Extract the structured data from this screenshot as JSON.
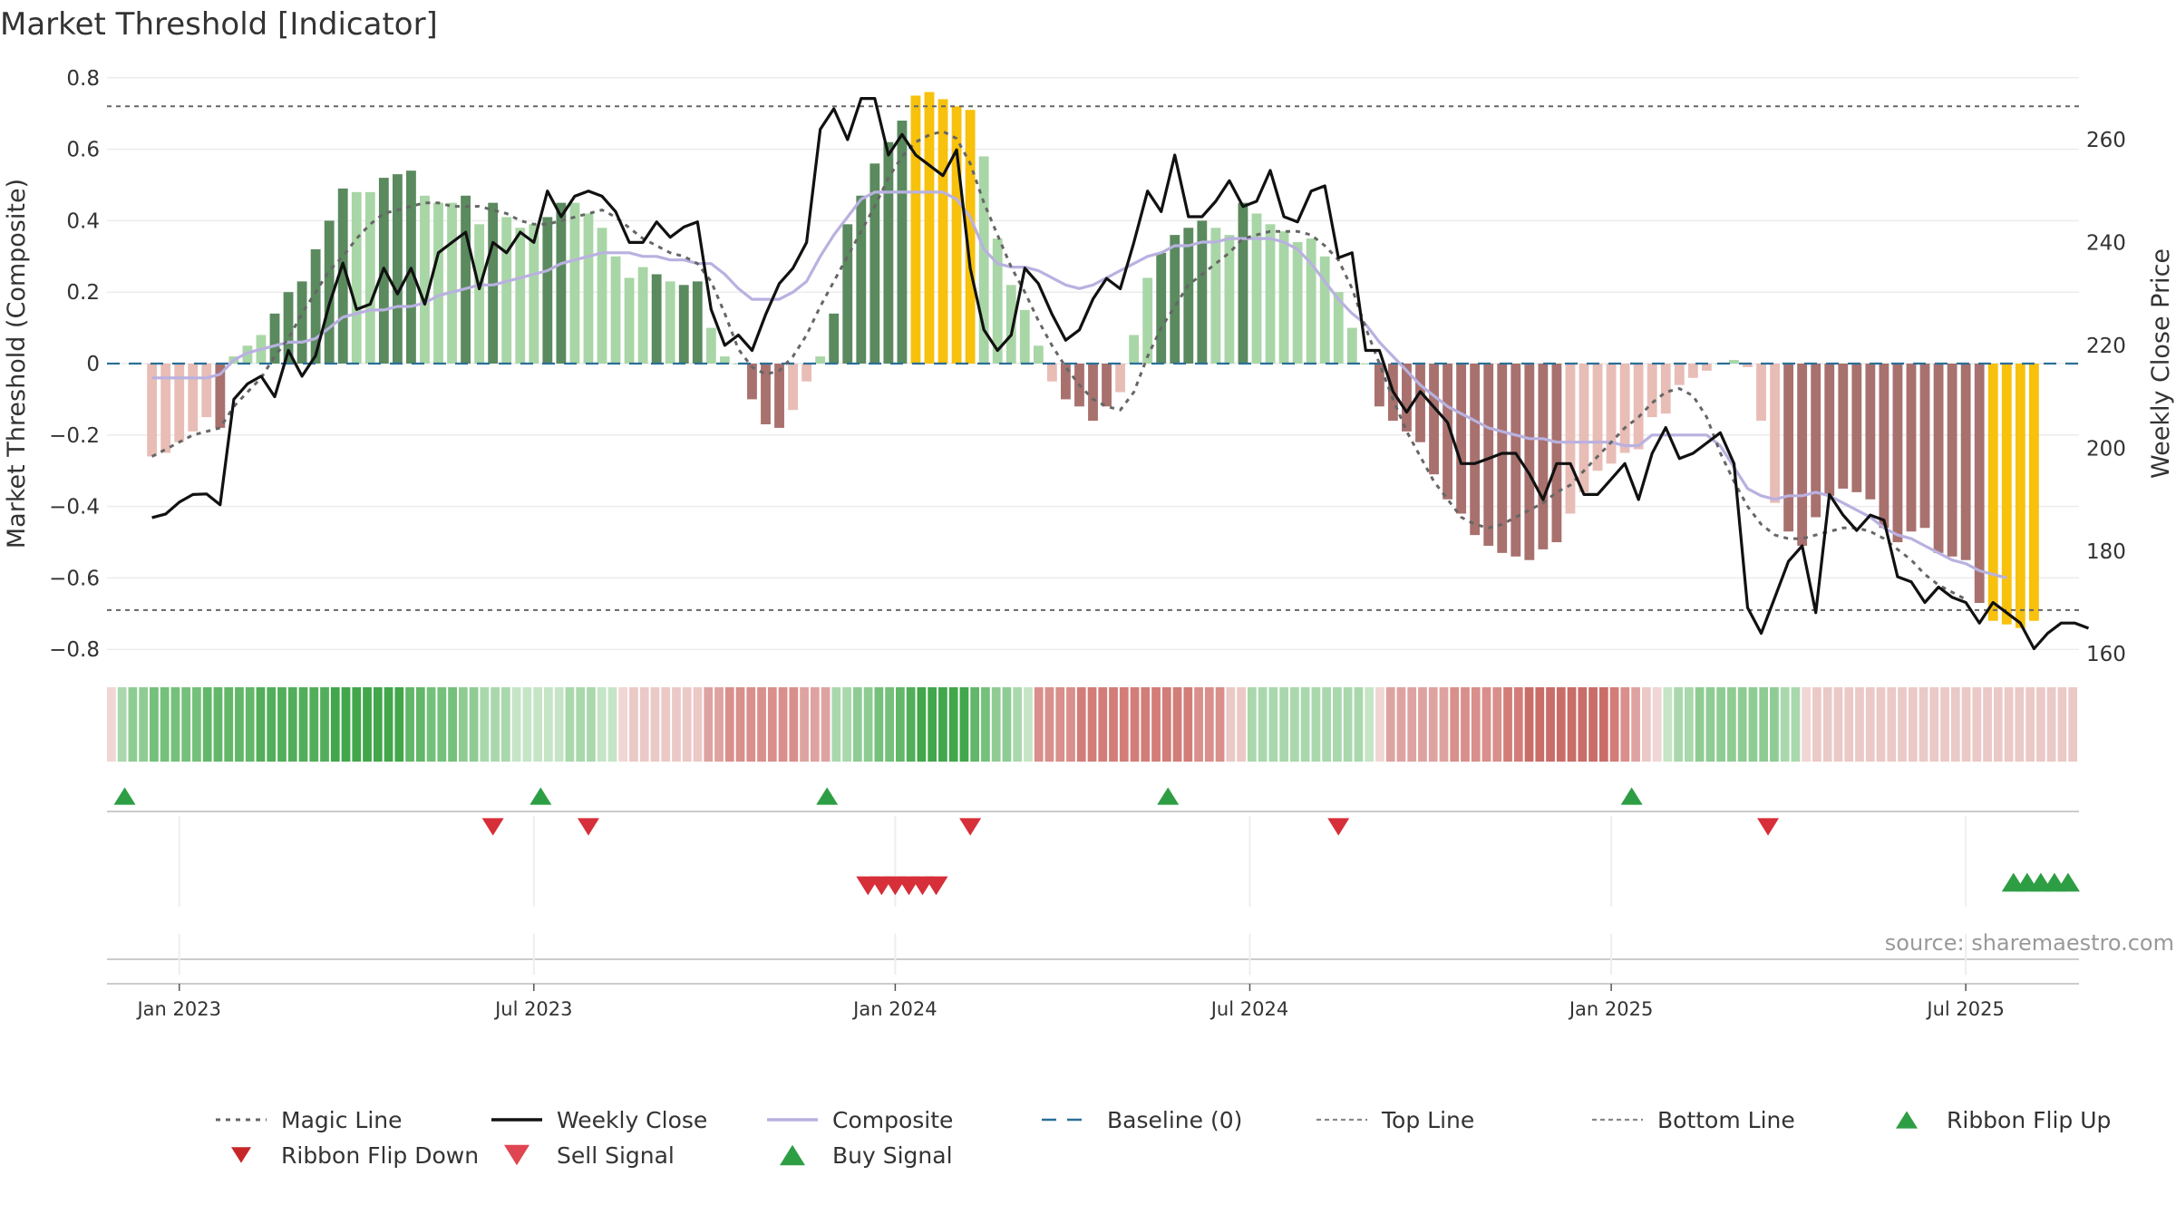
{
  "title": "Market Threshold [Indicator]",
  "source": "source: sharemaestro.com",
  "colors": {
    "dark_green": "#5a8a5e",
    "light_green": "#a9d6a6",
    "dark_red": "#a8716e",
    "light_red": "#e8bdb6",
    "gold": "#f7c10c",
    "weekly_close": "#111111",
    "composite": "#b9b1e0",
    "magic": "#666666",
    "baseline": "#2a6f97",
    "signal_green": "#2e9e44",
    "signal_red": "#d62f3a"
  },
  "chart_data": {
    "type": "bar+line",
    "title": "Market Threshold [Indicator]",
    "ylabel": "Market Threshold (Composite)",
    "y2label": "Weekly Close Price",
    "ylim": [
      -0.84,
      0.84
    ],
    "y2lim": [
      158.1,
      274.8
    ],
    "yticks": [
      0.8,
      0.6,
      0.4,
      0.2,
      0,
      -0.2,
      -0.4,
      -0.6,
      -0.8
    ],
    "yticklabels": [
      "0.8",
      "0.6",
      "0.4",
      "0.2",
      "0",
      "−0.2",
      "−0.4",
      "−0.6",
      "−0.8"
    ],
    "y2ticks": [
      260,
      240,
      220,
      200,
      180,
      160
    ],
    "y2ticklabels": [
      "260",
      "240",
      "220",
      "200",
      "180",
      "160"
    ],
    "xlim_weeks": [
      -3.3,
      141.3
    ],
    "xticks": [
      {
        "week": 2,
        "label": "Jan 2023"
      },
      {
        "week": 28,
        "label": "Jul 2023"
      },
      {
        "week": 54.5,
        "label": "Jan 2024"
      },
      {
        "week": 80.5,
        "label": "Jul 2024"
      },
      {
        "week": 107,
        "label": "Jan 2025"
      },
      {
        "week": 133,
        "label": "Jul 2025"
      }
    ],
    "top_line": 0.72,
    "bottom_line": -0.69,
    "bars": {
      "values": [
        -0.26,
        -0.25,
        -0.22,
        -0.19,
        -0.15,
        -0.18,
        0.02,
        0.05,
        0.08,
        0.14,
        0.2,
        0.23,
        0.32,
        0.4,
        0.49,
        0.48,
        0.48,
        0.52,
        0.53,
        0.54,
        0.47,
        0.45,
        0.45,
        0.47,
        0.39,
        0.45,
        0.41,
        0.38,
        0.39,
        0.41,
        0.45,
        0.45,
        0.42,
        0.38,
        0.3,
        0.24,
        0.27,
        0.25,
        0.23,
        0.22,
        0.23,
        0.1,
        0.02,
        0.0,
        -0.1,
        -0.17,
        -0.18,
        -0.13,
        -0.05,
        0.02,
        0.14,
        0.39,
        0.47,
        0.56,
        0.62,
        0.68,
        0.75,
        0.76,
        0.74,
        0.72,
        0.71,
        0.58,
        0.35,
        0.22,
        0.15,
        0.05,
        -0.05,
        -0.1,
        -0.12,
        -0.16,
        -0.12,
        -0.08,
        0.08,
        0.24,
        0.31,
        0.36,
        0.38,
        0.4,
        0.38,
        0.36,
        0.45,
        0.42,
        0.39,
        0.37,
        0.34,
        0.35,
        0.3,
        0.2,
        0.1,
        0.0,
        -0.12,
        -0.16,
        -0.19,
        -0.22,
        -0.31,
        -0.38,
        -0.42,
        -0.48,
        -0.51,
        -0.53,
        -0.54,
        -0.55,
        -0.52,
        -0.5,
        -0.42,
        -0.36,
        -0.3,
        -0.28,
        -0.25,
        -0.24,
        -0.15,
        -0.14,
        -0.06,
        -0.04,
        -0.02,
        0.0,
        0.01,
        -0.01,
        -0.16,
        -0.39,
        -0.47,
        -0.51,
        -0.43,
        -0.37,
        -0.35,
        -0.36,
        -0.38,
        -0.46,
        -0.5,
        -0.47,
        -0.46,
        -0.53,
        -0.54,
        -0.55,
        -0.67,
        -0.72,
        -0.73,
        -0.74,
        -0.72
      ],
      "shades": [
        "L",
        "L",
        "L",
        "L",
        "L",
        "D",
        "L",
        "L",
        "L",
        "D",
        "D",
        "D",
        "D",
        "D",
        "D",
        "L",
        "L",
        "D",
        "D",
        "D",
        "L",
        "L",
        "L",
        "D",
        "L",
        "D",
        "L",
        "L",
        "L",
        "D",
        "D",
        "L",
        "L",
        "L",
        "L",
        "L",
        "L",
        "D",
        "L",
        "D",
        "D",
        "L",
        "L",
        "L",
        "D",
        "D",
        "D",
        "L",
        "L",
        "L",
        "D",
        "D",
        "D",
        "D",
        "D",
        "D",
        "G",
        "G",
        "G",
        "G",
        "G",
        "L",
        "L",
        "L",
        "L",
        "L",
        "L",
        "D",
        "D",
        "D",
        "D",
        "L",
        "L",
        "L",
        "D",
        "D",
        "D",
        "D",
        "L",
        "L",
        "D",
        "L",
        "L",
        "L",
        "L",
        "L",
        "L",
        "L",
        "L",
        "L",
        "D",
        "D",
        "D",
        "D",
        "D",
        "D",
        "D",
        "D",
        "D",
        "D",
        "D",
        "D",
        "D",
        "D",
        "L",
        "L",
        "L",
        "L",
        "L",
        "L",
        "L",
        "L",
        "L",
        "L",
        "L",
        "L",
        "L",
        "L",
        "L",
        "L",
        "D",
        "D",
        "D",
        "D",
        "D",
        "D",
        "D",
        "D",
        "D",
        "D",
        "D",
        "D",
        "D",
        "D",
        "D",
        "G",
        "G",
        "G",
        "G",
        "G"
      ]
    },
    "series": [
      {
        "name": "Weekly Close",
        "axis": "right",
        "values": [
          186.5,
          187.2,
          189.5,
          191.0,
          191.1,
          189.0,
          209.5,
          212.5,
          214.0,
          210.0,
          219.0,
          214.0,
          218.0,
          228.0,
          236.0,
          227.0,
          228.0,
          235.0,
          230.0,
          235.0,
          228.0,
          238.0,
          240.0,
          242.0,
          231.0,
          240.0,
          238.0,
          242.0,
          240.0,
          250.0,
          245.0,
          249.0,
          250.0,
          249.0,
          246.0,
          240.0,
          240.0,
          244.0,
          241.0,
          243.0,
          244.0,
          227.0,
          220.0,
          222.0,
          219.0,
          226.0,
          232.0,
          235.0,
          240.0,
          262.0,
          266.0,
          260.0,
          268.0,
          268.0,
          257.0,
          261.0,
          257.0,
          255.0,
          253.0,
          258.0,
          235.0,
          223.0,
          219.0,
          222.0,
          235.0,
          232.0,
          226.0,
          221.0,
          223.0,
          229.0,
          233.0,
          231.0,
          240.0,
          250.0,
          246.0,
          257.0,
          245.0,
          245.0,
          248.0,
          252.0,
          247.0,
          248.0,
          254.0,
          245.0,
          244.0,
          250.0,
          251.0,
          237.0,
          238.0,
          219.0,
          219.0,
          211.0,
          207.0,
          211.0,
          208.0,
          205.0,
          197.0,
          197.0,
          198.0,
          199.0,
          199.0,
          195.0,
          190.0,
          197.0,
          197.0,
          191.0,
          191.0,
          194.0,
          197.0,
          190.0,
          199.0,
          204.0,
          198.0,
          199.0,
          201.0,
          203.0,
          197.0,
          169.0,
          164.0,
          171.0,
          178.0,
          181.0,
          168.0,
          191.0,
          187.0,
          184.0,
          187.0,
          186.0,
          175.0,
          174.0,
          170.0,
          173.0,
          171.0,
          170.0,
          166.0,
          170.0,
          168.0,
          166.0,
          161.0,
          164.0,
          166.0,
          166.0,
          165.0
        ]
      },
      {
        "name": "Composite",
        "axis": "left",
        "values": [
          -0.04,
          -0.04,
          -0.04,
          -0.04,
          -0.04,
          -0.03,
          0.01,
          0.03,
          0.04,
          0.05,
          0.06,
          0.06,
          0.07,
          0.1,
          0.13,
          0.14,
          0.15,
          0.15,
          0.16,
          0.16,
          0.17,
          0.19,
          0.2,
          0.21,
          0.22,
          0.22,
          0.23,
          0.24,
          0.25,
          0.26,
          0.28,
          0.29,
          0.3,
          0.31,
          0.31,
          0.31,
          0.3,
          0.3,
          0.29,
          0.29,
          0.28,
          0.28,
          0.25,
          0.21,
          0.18,
          0.18,
          0.18,
          0.2,
          0.23,
          0.3,
          0.36,
          0.41,
          0.46,
          0.48,
          0.48,
          0.48,
          0.48,
          0.48,
          0.48,
          0.46,
          0.41,
          0.32,
          0.28,
          0.27,
          0.27,
          0.26,
          0.24,
          0.22,
          0.21,
          0.22,
          0.24,
          0.26,
          0.28,
          0.3,
          0.31,
          0.33,
          0.33,
          0.34,
          0.34,
          0.35,
          0.35,
          0.35,
          0.35,
          0.34,
          0.32,
          0.28,
          0.23,
          0.18,
          0.14,
          0.11,
          0.06,
          0.02,
          -0.02,
          -0.06,
          -0.09,
          -0.12,
          -0.14,
          -0.16,
          -0.18,
          -0.19,
          -0.2,
          -0.21,
          -0.21,
          -0.22,
          -0.22,
          -0.22,
          -0.22,
          -0.22,
          -0.23,
          -0.23,
          -0.2,
          -0.2,
          -0.2,
          -0.2,
          -0.2,
          -0.23,
          -0.29,
          -0.35,
          -0.37,
          -0.38,
          -0.37,
          -0.37,
          -0.36,
          -0.37,
          -0.39,
          -0.41,
          -0.43,
          -0.46,
          -0.48,
          -0.49,
          -0.51,
          -0.53,
          -0.55,
          -0.56,
          -0.58,
          -0.59,
          -0.6
        ]
      },
      {
        "name": "Magic Line",
        "axis": "left",
        "values": [
          -0.26,
          -0.24,
          -0.22,
          -0.2,
          -0.19,
          -0.18,
          -0.12,
          -0.08,
          -0.04,
          0.02,
          0.07,
          0.14,
          0.2,
          0.26,
          0.3,
          0.35,
          0.39,
          0.42,
          0.43,
          0.44,
          0.45,
          0.45,
          0.44,
          0.44,
          0.44,
          0.43,
          0.42,
          0.4,
          0.39,
          0.39,
          0.4,
          0.41,
          0.42,
          0.43,
          0.41,
          0.38,
          0.35,
          0.33,
          0.31,
          0.3,
          0.28,
          0.23,
          0.14,
          0.04,
          -0.01,
          -0.03,
          -0.02,
          0.02,
          0.08,
          0.16,
          0.23,
          0.3,
          0.37,
          0.44,
          0.52,
          0.58,
          0.62,
          0.64,
          0.65,
          0.63,
          0.56,
          0.45,
          0.36,
          0.27,
          0.2,
          0.12,
          0.05,
          -0.01,
          -0.06,
          -0.1,
          -0.12,
          -0.13,
          -0.08,
          0.02,
          0.1,
          0.16,
          0.22,
          0.25,
          0.28,
          0.31,
          0.35,
          0.36,
          0.37,
          0.37,
          0.37,
          0.36,
          0.33,
          0.29,
          0.21,
          0.1,
          0.0,
          -0.1,
          -0.19,
          -0.26,
          -0.33,
          -0.38,
          -0.43,
          -0.45,
          -0.46,
          -0.45,
          -0.43,
          -0.41,
          -0.39,
          -0.36,
          -0.34,
          -0.3,
          -0.26,
          -0.22,
          -0.18,
          -0.15,
          -0.11,
          -0.08,
          -0.07,
          -0.09,
          -0.15,
          -0.25,
          -0.33,
          -0.4,
          -0.45,
          -0.48,
          -0.49,
          -0.49,
          -0.48,
          -0.47,
          -0.46,
          -0.46,
          -0.47,
          -0.49,
          -0.52,
          -0.55,
          -0.59,
          -0.62,
          -0.64,
          -0.66
        ]
      }
    ],
    "ribbon": {
      "colors": [
        "#f0d6d4",
        "#a9d8ac",
        "#8fcc93",
        "#8fcc93",
        "#75c07b",
        "#75c07b",
        "#75c07b",
        "#75c07b",
        "#75c07b",
        "#62b769",
        "#62b769",
        "#62b769",
        "#62b769",
        "#62b769",
        "#52ae5a",
        "#52ae5a",
        "#52ae5a",
        "#52ae5a",
        "#52ae5a",
        "#52ae5a",
        "#52ae5a",
        "#42a64b",
        "#42a64b",
        "#42a64b",
        "#42a64b",
        "#42a64b",
        "#42a64b",
        "#42a64b",
        "#62b769",
        "#62b769",
        "#75c07b",
        "#75c07b",
        "#75c07b",
        "#8fcc93",
        "#8fcc93",
        "#a9d8ac",
        "#a9d8ac",
        "#a9d8ac",
        "#c5e5c6",
        "#c5e5c6",
        "#c5e5c6",
        "#c5e5c6",
        "#c5e5c6",
        "#a9d8ac",
        "#a9d8ac",
        "#a9d8ac",
        "#c5e5c6",
        "#c5e5c6",
        "#f0d6d4",
        "#ebc9c6",
        "#ebc9c6",
        "#ebc9c6",
        "#ebc9c6",
        "#ebc9c6",
        "#ebc9c6",
        "#ebc9c6",
        "#dea3a0",
        "#dea3a0",
        "#d98f8b",
        "#d98f8b",
        "#d98f8b",
        "#d98f8b",
        "#d98f8b",
        "#d98f8b",
        "#d98f8b",
        "#dea3a0",
        "#dea3a0",
        "#dea3a0",
        "#a9d8ac",
        "#a9d8ac",
        "#8fcc93",
        "#8fcc93",
        "#75c07b",
        "#75c07b",
        "#62b769",
        "#52ae5a",
        "#42a64b",
        "#42a64b",
        "#42a64b",
        "#42a64b",
        "#42a64b",
        "#62b769",
        "#75c07b",
        "#8fcc93",
        "#8fcc93",
        "#a9d8ac",
        "#c5e5c6",
        "#d98f8b",
        "#d98f8b",
        "#d98f8b",
        "#d98f8b",
        "#d27d78",
        "#d27d78",
        "#d27d78",
        "#d27d78",
        "#d27d78",
        "#d27d78",
        "#d27d78",
        "#d27d78",
        "#d27d78",
        "#d27d78",
        "#d27d78",
        "#d98f8b",
        "#d98f8b",
        "#d98f8b",
        "#ebc9c6",
        "#ebc9c6",
        "#a9d8ac",
        "#a9d8ac",
        "#a9d8ac",
        "#a9d8ac",
        "#a9d8ac",
        "#a9d8ac",
        "#a9d8ac",
        "#a9d8ac",
        "#a9d8ac",
        "#a9d8ac",
        "#a9d8ac",
        "#c5e5c6",
        "#f0d6d4",
        "#dea3a0",
        "#dea3a0",
        "#dea3a0",
        "#dea3a0",
        "#dea3a0",
        "#dea3a0",
        "#d98f8b",
        "#d98f8b",
        "#d98f8b",
        "#d98f8b",
        "#d98f8b",
        "#d27d78",
        "#d27d78",
        "#c96d68",
        "#c96d68",
        "#c96d68",
        "#c96d68",
        "#c96d68",
        "#c96d68",
        "#c96d68",
        "#c96d68",
        "#d27d78",
        "#d98f8b",
        "#dea3a0",
        "#ebc9c6",
        "#f0d6d4",
        "#c5e5c6",
        "#a9d8ac",
        "#a9d8ac",
        "#8fcc93",
        "#8fcc93",
        "#8fcc93",
        "#8fcc93",
        "#8fcc93",
        "#8fcc93",
        "#8fcc93",
        "#8fcc93",
        "#a9d8ac",
        "#a9d8ac",
        "#f0d6d4",
        "#ebc9c6",
        "#ebc9c6",
        "#ebc9c6",
        "#ebc9c6",
        "#ebc9c6",
        "#ebc9c6",
        "#ebc9c6",
        "#ebc9c6",
        "#ebc9c6",
        "#ebc9c6",
        "#ebc9c6",
        "#ebc9c6",
        "#ebc9c6",
        "#ebc9c6",
        "#ebc9c6",
        "#ebc9c6",
        "#ebc9c6",
        "#ebc9c6",
        "#ebc9c6",
        "#ebc9c6",
        "#ebc9c6",
        "#ebc9c6",
        "#ebc9c6",
        "#ebc9c6",
        "#ebc9c6"
      ]
    },
    "ribbon_flip_up_weeks": [
      -2,
      28.5,
      49.5,
      74.5,
      108.5
    ],
    "ribbon_flip_down_weeks": [
      25,
      32,
      60,
      87,
      118.5
    ],
    "sell_signal_weeks": [
      52.5,
      53.5,
      54.5,
      55.5,
      56.5,
      57.5
    ],
    "buy_signal_weeks": [
      136.5,
      137.5,
      138.5,
      139.5,
      140.5
    ],
    "legend": [
      {
        "key": "magic",
        "label": "Magic Line"
      },
      {
        "key": "weekly",
        "label": "Weekly Close"
      },
      {
        "key": "composite",
        "label": "Composite"
      },
      {
        "key": "baseline",
        "label": "Baseline (0)"
      },
      {
        "key": "topline",
        "label": "Top Line"
      },
      {
        "key": "bottomline",
        "label": "Bottom Line"
      },
      {
        "key": "flipup",
        "label": "Ribbon Flip Up"
      },
      {
        "key": "flipdown",
        "label": "Ribbon Flip Down"
      },
      {
        "key": "sell",
        "label": "Sell Signal"
      },
      {
        "key": "buy",
        "label": "Buy Signal"
      }
    ]
  }
}
